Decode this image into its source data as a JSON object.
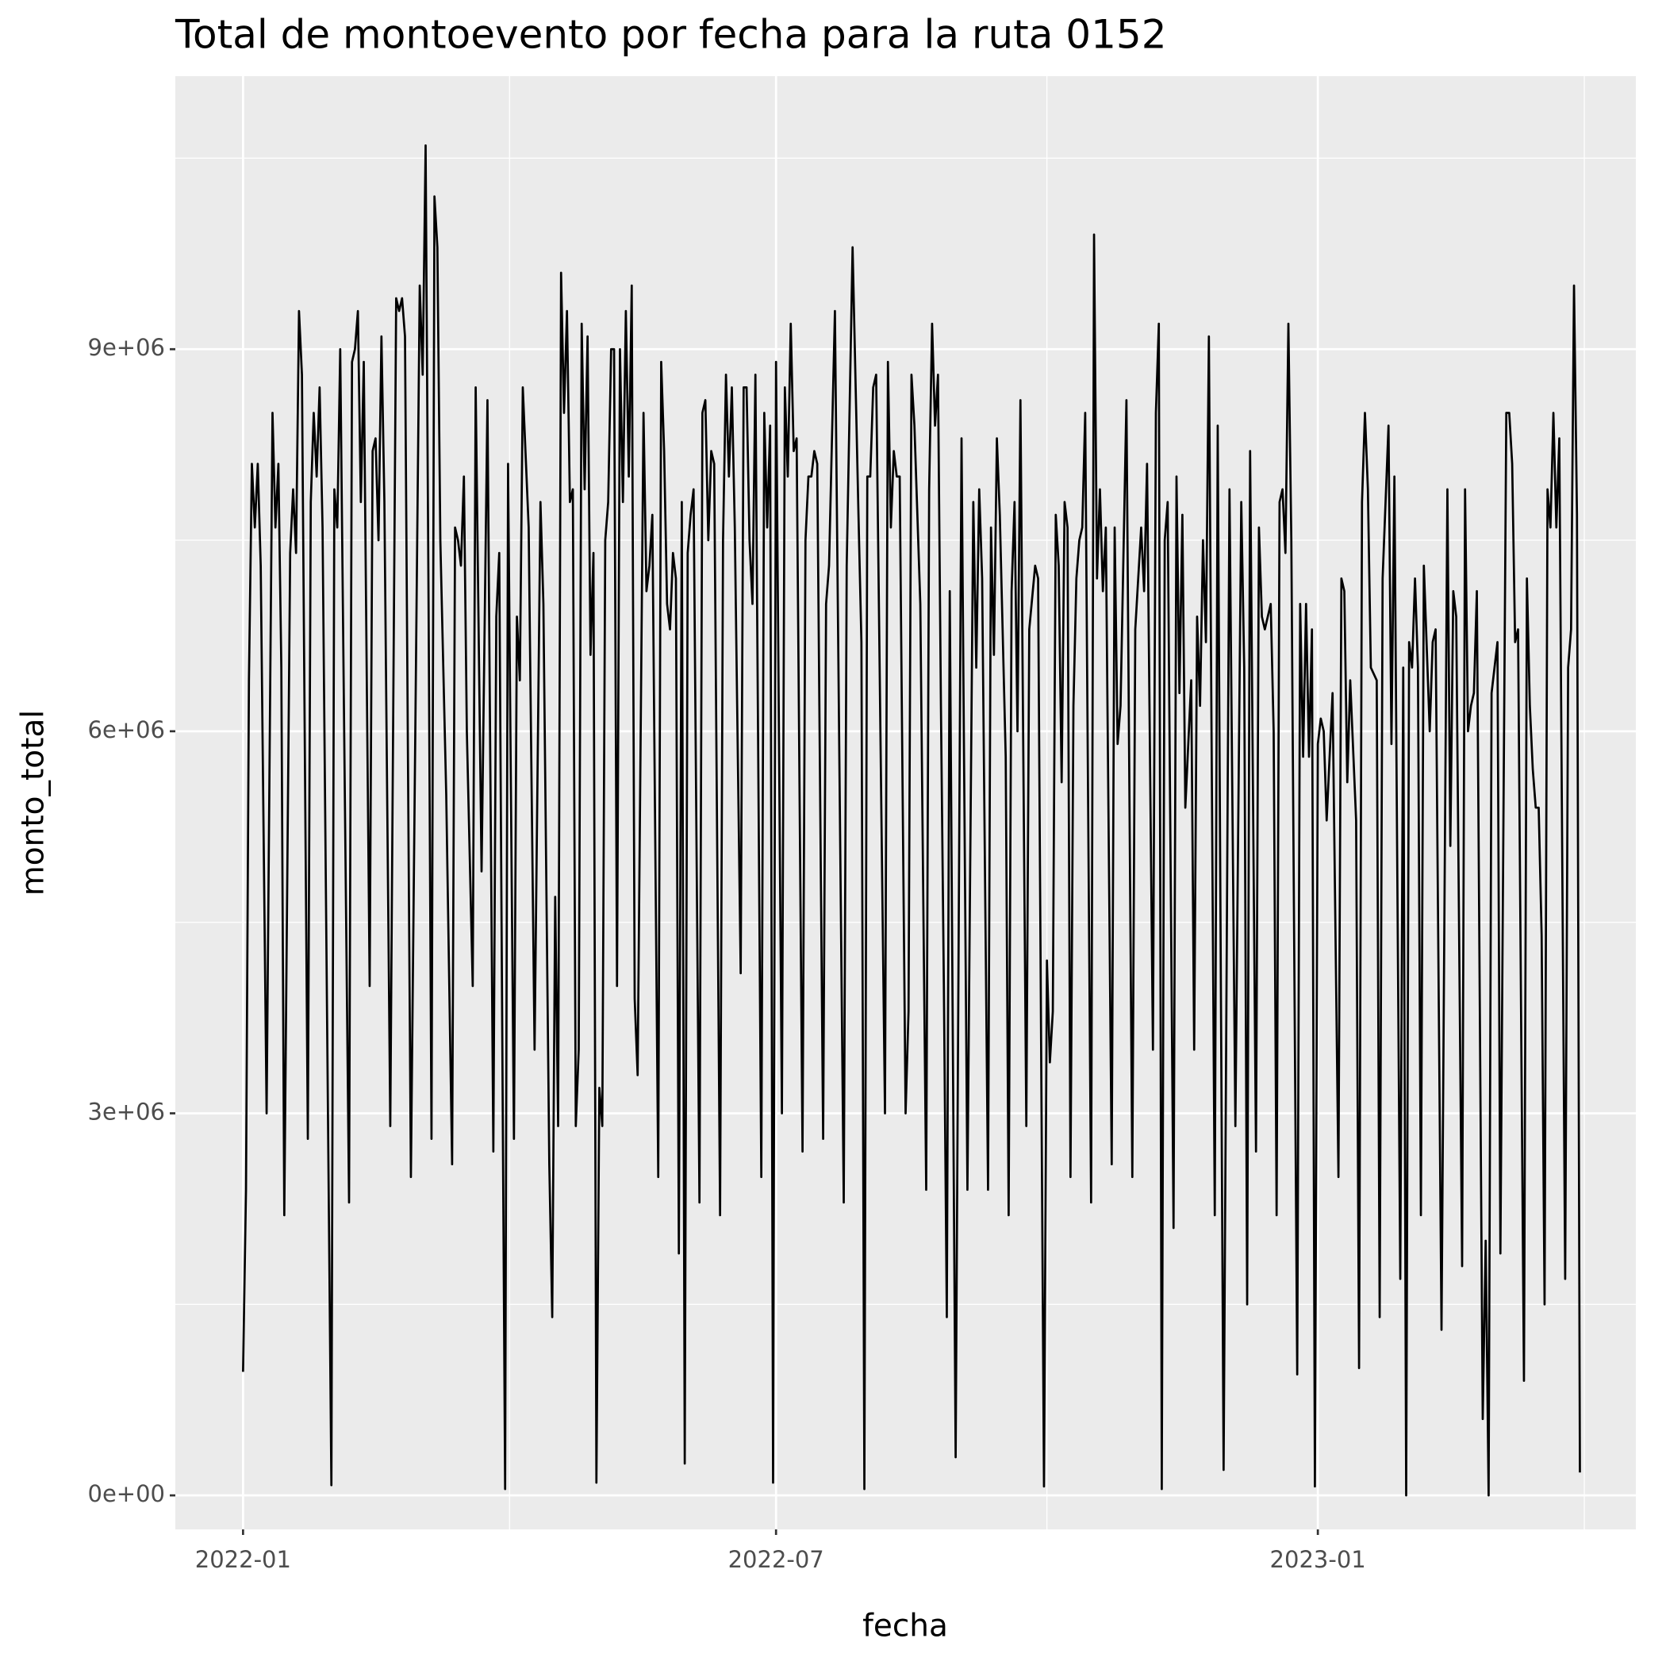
{
  "chart_data": {
    "type": "line",
    "title": "Total de montoevento por fecha para la ruta 0152",
    "x_label": "fecha",
    "y_label": "monto_total",
    "color": "#000000",
    "grid": true,
    "xlim": [
      "2021-12-09",
      "2023-04-19"
    ],
    "xticks": [
      {
        "value": "2022-01-01",
        "label": "2022-01"
      },
      {
        "value": "2022-07-01",
        "label": "2022-07"
      },
      {
        "value": "2023-01-01",
        "label": "2023-01"
      }
    ],
    "ylim": [
      -267000,
      11144000
    ],
    "yticks": [
      {
        "value": 0,
        "label": "0e+00"
      },
      {
        "value": 3000000,
        "label": "3e+06"
      },
      {
        "value": 6000000,
        "label": "6e+06"
      },
      {
        "value": 9000000,
        "label": "9e+06"
      }
    ],
    "x": [
      "2022-01-01",
      "2022-01-02",
      "2022-01-03",
      "2022-01-04",
      "2022-01-05",
      "2022-01-06",
      "2022-01-07",
      "2022-01-09",
      "2022-01-11",
      "2022-01-12",
      "2022-01-13",
      "2022-01-14",
      "2022-01-15",
      "2022-01-17",
      "2022-01-18",
      "2022-01-19",
      "2022-01-20",
      "2022-01-21",
      "2022-01-23",
      "2022-01-24",
      "2022-01-25",
      "2022-01-26",
      "2022-01-27",
      "2022-01-28",
      "2022-01-31",
      "2022-02-01",
      "2022-02-02",
      "2022-02-03",
      "2022-02-06",
      "2022-02-07",
      "2022-02-08",
      "2022-02-09",
      "2022-02-10",
      "2022-02-11",
      "2022-02-13",
      "2022-02-14",
      "2022-02-15",
      "2022-02-16",
      "2022-02-17",
      "2022-02-18",
      "2022-02-20",
      "2022-02-22",
      "2022-02-23",
      "2022-02-24",
      "2022-02-25",
      "2022-02-27",
      "2022-03-02",
      "2022-03-03",
      "2022-03-04",
      "2022-03-05",
      "2022-03-06",
      "2022-03-07",
      "2022-03-08",
      "2022-03-09",
      "2022-03-11",
      "2022-03-13",
      "2022-03-14",
      "2022-03-15",
      "2022-03-16",
      "2022-03-17",
      "2022-03-18",
      "2022-03-20",
      "2022-03-21",
      "2022-03-23",
      "2022-03-25",
      "2022-03-27",
      "2022-03-28",
      "2022-03-29",
      "2022-03-31",
      "2022-04-01",
      "2022-04-03",
      "2022-04-04",
      "2022-04-05",
      "2022-04-06",
      "2022-04-08",
      "2022-04-10",
      "2022-04-12",
      "2022-04-13",
      "2022-04-15",
      "2022-04-16",
      "2022-04-17",
      "2022-04-18",
      "2022-04-19",
      "2022-04-20",
      "2022-04-21",
      "2022-04-22",
      "2022-04-23",
      "2022-04-24",
      "2022-04-25",
      "2022-04-26",
      "2022-04-27",
      "2022-04-28",
      "2022-04-29",
      "2022-04-30",
      "2022-05-01",
      "2022-05-02",
      "2022-05-03",
      "2022-05-04",
      "2022-05-05",
      "2022-05-06",
      "2022-05-07",
      "2022-05-08",
      "2022-05-09",
      "2022-05-10",
      "2022-05-11",
      "2022-05-12",
      "2022-05-13",
      "2022-05-14",
      "2022-05-15",
      "2022-05-17",
      "2022-05-18",
      "2022-05-19",
      "2022-05-20",
      "2022-05-22",
      "2022-05-23",
      "2022-05-24",
      "2022-05-25",
      "2022-05-26",
      "2022-05-27",
      "2022-05-28",
      "2022-05-29",
      "2022-05-30",
      "2022-05-31",
      "2022-06-01",
      "2022-06-02",
      "2022-06-03",
      "2022-06-05",
      "2022-06-06",
      "2022-06-07",
      "2022-06-08",
      "2022-06-09",
      "2022-06-10",
      "2022-06-12",
      "2022-06-13",
      "2022-06-14",
      "2022-06-15",
      "2022-06-16",
      "2022-06-17",
      "2022-06-19",
      "2022-06-20",
      "2022-06-21",
      "2022-06-22",
      "2022-06-23",
      "2022-06-24",
      "2022-06-26",
      "2022-06-27",
      "2022-06-28",
      "2022-06-29",
      "2022-06-30",
      "2022-07-01",
      "2022-07-03",
      "2022-07-04",
      "2022-07-05",
      "2022-07-06",
      "2022-07-07",
      "2022-07-08",
      "2022-07-10",
      "2022-07-11",
      "2022-07-12",
      "2022-07-13",
      "2022-07-14",
      "2022-07-15",
      "2022-07-17",
      "2022-07-18",
      "2022-07-19",
      "2022-07-21",
      "2022-07-24",
      "2022-07-25",
      "2022-07-27",
      "2022-07-29",
      "2022-07-30",
      "2022-07-31",
      "2022-08-01",
      "2022-08-02",
      "2022-08-03",
      "2022-08-04",
      "2022-08-07",
      "2022-08-08",
      "2022-08-09",
      "2022-08-10",
      "2022-08-11",
      "2022-08-12",
      "2022-08-14",
      "2022-08-15",
      "2022-08-16",
      "2022-08-17",
      "2022-08-19",
      "2022-08-21",
      "2022-08-22",
      "2022-08-23",
      "2022-08-24",
      "2022-08-25",
      "2022-08-26",
      "2022-08-27",
      "2022-08-28",
      "2022-08-29",
      "2022-08-31",
      "2022-09-02",
      "2022-09-04",
      "2022-09-06",
      "2022-09-07",
      "2022-09-08",
      "2022-09-09",
      "2022-09-11",
      "2022-09-12",
      "2022-09-13",
      "2022-09-14",
      "2022-09-15",
      "2022-09-17",
      "2022-09-18",
      "2022-09-19",
      "2022-09-20",
      "2022-09-21",
      "2022-09-22",
      "2022-09-24",
      "2022-09-25",
      "2022-09-27",
      "2022-09-28",
      "2022-09-30",
      "2022-10-01",
      "2022-10-02",
      "2022-10-03",
      "2022-10-04",
      "2022-10-05",
      "2022-10-06",
      "2022-10-07",
      "2022-10-08",
      "2022-10-09",
      "2022-10-10",
      "2022-10-11",
      "2022-10-12",
      "2022-10-13",
      "2022-10-14",
      "2022-10-16",
      "2022-10-17",
      "2022-10-18",
      "2022-10-19",
      "2022-10-20",
      "2022-10-21",
      "2022-10-23",
      "2022-10-24",
      "2022-10-25",
      "2022-10-26",
      "2022-10-28",
      "2022-10-30",
      "2022-10-31",
      "2022-11-02",
      "2022-11-03",
      "2022-11-04",
      "2022-11-06",
      "2022-11-07",
      "2022-11-08",
      "2022-11-09",
      "2022-11-10",
      "2022-11-11",
      "2022-11-13",
      "2022-11-14",
      "2022-11-15",
      "2022-11-16",
      "2022-11-17",
      "2022-11-19",
      "2022-11-20",
      "2022-11-21",
      "2022-11-22",
      "2022-11-23",
      "2022-11-24",
      "2022-11-25",
      "2022-11-27",
      "2022-11-28",
      "2022-11-30",
      "2022-12-02",
      "2022-12-04",
      "2022-12-06",
      "2022-12-07",
      "2022-12-08",
      "2022-12-09",
      "2022-12-11",
      "2022-12-12",
      "2022-12-13",
      "2022-12-14",
      "2022-12-16",
      "2022-12-17",
      "2022-12-18",
      "2022-12-19",
      "2022-12-20",
      "2022-12-21",
      "2022-12-22",
      "2022-12-23",
      "2022-12-25",
      "2022-12-26",
      "2022-12-27",
      "2022-12-28",
      "2022-12-29",
      "2022-12-30",
      "2022-12-31",
      "2023-01-01",
      "2023-01-02",
      "2023-01-03",
      "2023-01-04",
      "2023-01-06",
      "2023-01-08",
      "2023-01-09",
      "2023-01-10",
      "2023-01-11",
      "2023-01-12",
      "2023-01-14",
      "2023-01-15",
      "2023-01-16",
      "2023-01-17",
      "2023-01-18",
      "2023-01-19",
      "2023-01-21",
      "2023-01-22",
      "2023-01-23",
      "2023-01-25",
      "2023-01-26",
      "2023-01-27",
      "2023-01-29",
      "2023-01-30",
      "2023-01-31",
      "2023-02-01",
      "2023-02-02",
      "2023-02-03",
      "2023-02-04",
      "2023-02-05",
      "2023-02-06",
      "2023-02-08",
      "2023-02-09",
      "2023-02-10",
      "2023-02-12",
      "2023-02-14",
      "2023-02-15",
      "2023-02-16",
      "2023-02-17",
      "2023-02-19",
      "2023-02-20",
      "2023-02-21",
      "2023-02-22",
      "2023-02-23",
      "2023-02-24",
      "2023-02-26",
      "2023-02-27",
      "2023-02-28",
      "2023-03-01",
      "2023-03-03",
      "2023-03-04",
      "2023-03-06",
      "2023-03-07",
      "2023-03-08",
      "2023-03-09",
      "2023-03-10",
      "2023-03-12",
      "2023-03-13",
      "2023-03-14",
      "2023-03-15",
      "2023-03-16",
      "2023-03-17",
      "2023-03-18",
      "2023-03-19",
      "2023-03-20",
      "2023-03-21",
      "2023-03-22",
      "2023-03-23",
      "2023-03-24",
      "2023-03-26",
      "2023-03-27",
      "2023-03-28",
      "2023-03-29",
      "2023-03-30",
      "2023-03-31"
    ],
    "values": [
      970000,
      2400000,
      6400000,
      8100000,
      7600000,
      8100000,
      7300000,
      3000000,
      8500000,
      7600000,
      8100000,
      6500000,
      2200000,
      7400000,
      7900000,
      7400000,
      9300000,
      8800000,
      2800000,
      7800000,
      8500000,
      8000000,
      8700000,
      7600000,
      80000,
      7900000,
      7600000,
      9000000,
      2300000,
      8900000,
      9000000,
      9300000,
      7800000,
      8900000,
      4000000,
      8200000,
      8300000,
      7500000,
      9100000,
      7800000,
      2900000,
      9400000,
      9300000,
      9400000,
      9100000,
      2500000,
      9500000,
      8800000,
      10600000,
      7000000,
      2800000,
      10200000,
      9800000,
      7500000,
      5500000,
      2600000,
      7600000,
      7500000,
      7300000,
      8000000,
      6000000,
      4000000,
      8700000,
      4900000,
      8600000,
      2700000,
      6900000,
      7400000,
      50000,
      8100000,
      2800000,
      6900000,
      6400000,
      8700000,
      7600000,
      3500000,
      7800000,
      7000000,
      2600000,
      1400000,
      4700000,
      2900000,
      9600000,
      8500000,
      9300000,
      7800000,
      7900000,
      2900000,
      3500000,
      9200000,
      7900000,
      9100000,
      6600000,
      7400000,
      100000,
      3200000,
      2900000,
      7500000,
      7800000,
      9000000,
      9000000,
      4000000,
      9000000,
      7800000,
      9300000,
      8000000,
      9500000,
      3900000,
      3300000,
      8500000,
      7100000,
      7300000,
      7700000,
      2500000,
      8900000,
      8200000,
      7000000,
      6800000,
      7400000,
      7200000,
      1900000,
      7800000,
      250000,
      7400000,
      7700000,
      7900000,
      2300000,
      8500000,
      8600000,
      7500000,
      8200000,
      8100000,
      2200000,
      7500000,
      8800000,
      8000000,
      8700000,
      7600000,
      4100000,
      8700000,
      8700000,
      7500000,
      7000000,
      8800000,
      2500000,
      8500000,
      7600000,
      8400000,
      100000,
      8900000,
      3000000,
      8700000,
      8000000,
      9200000,
      8200000,
      8300000,
      2700000,
      7500000,
      8000000,
      8000000,
      8200000,
      8100000,
      2800000,
      7000000,
      7300000,
      9300000,
      2300000,
      7300000,
      9800000,
      7700000,
      6700000,
      50000,
      8000000,
      8000000,
      8700000,
      8800000,
      3000000,
      8900000,
      7600000,
      8200000,
      8000000,
      8000000,
      3000000,
      3800000,
      8800000,
      8400000,
      7000000,
      2400000,
      7900000,
      9200000,
      8400000,
      8800000,
      6200000,
      4000000,
      1400000,
      7100000,
      300000,
      8300000,
      2400000,
      7800000,
      6500000,
      7900000,
      7200000,
      2400000,
      7600000,
      6600000,
      8300000,
      7700000,
      5800000,
      2200000,
      7100000,
      7800000,
      6000000,
      8600000,
      2900000,
      6800000,
      7300000,
      7200000,
      70000,
      4200000,
      3400000,
      3800000,
      7700000,
      7300000,
      5600000,
      7800000,
      7600000,
      2500000,
      6200000,
      7200000,
      7500000,
      7600000,
      8500000,
      2300000,
      9900000,
      7200000,
      7900000,
      7100000,
      7600000,
      2600000,
      7600000,
      5900000,
      6200000,
      8600000,
      2500000,
      6800000,
      7600000,
      7100000,
      8100000,
      3500000,
      8500000,
      9200000,
      50000,
      7500000,
      7800000,
      2100000,
      8000000,
      6300000,
      7700000,
      5400000,
      6400000,
      3500000,
      6900000,
      6200000,
      7500000,
      6700000,
      9100000,
      2200000,
      8400000,
      200000,
      7900000,
      2900000,
      7800000,
      6500000,
      1500000,
      8200000,
      2700000,
      7600000,
      6900000,
      6800000,
      7000000,
      6000000,
      2200000,
      7800000,
      7900000,
      7400000,
      9200000,
      7500000,
      950000,
      7000000,
      5800000,
      7000000,
      5800000,
      6800000,
      70000,
      5900000,
      6100000,
      6000000,
      5300000,
      6300000,
      2500000,
      7200000,
      7100000,
      5600000,
      6400000,
      5300000,
      1000000,
      7800000,
      8500000,
      7900000,
      6500000,
      6400000,
      1400000,
      7200000,
      8400000,
      5900000,
      8000000,
      1700000,
      6500000,
      0,
      6700000,
      6500000,
      7200000,
      6500000,
      2200000,
      7300000,
      6000000,
      6700000,
      6800000,
      1300000,
      7900000,
      5100000,
      7100000,
      6900000,
      1800000,
      7900000,
      6000000,
      6200000,
      6300000,
      7100000,
      600000,
      2000000,
      0,
      6300000,
      6700000,
      1900000,
      8500000,
      8500000,
      8100000,
      6700000,
      6800000,
      900000,
      7200000,
      6200000,
      5700000,
      5400000,
      5400000,
      4400000,
      1500000,
      7900000,
      7600000,
      8500000,
      7600000,
      8300000,
      1700000,
      6500000,
      6800000,
      9500000,
      7700000,
      180000
    ]
  }
}
